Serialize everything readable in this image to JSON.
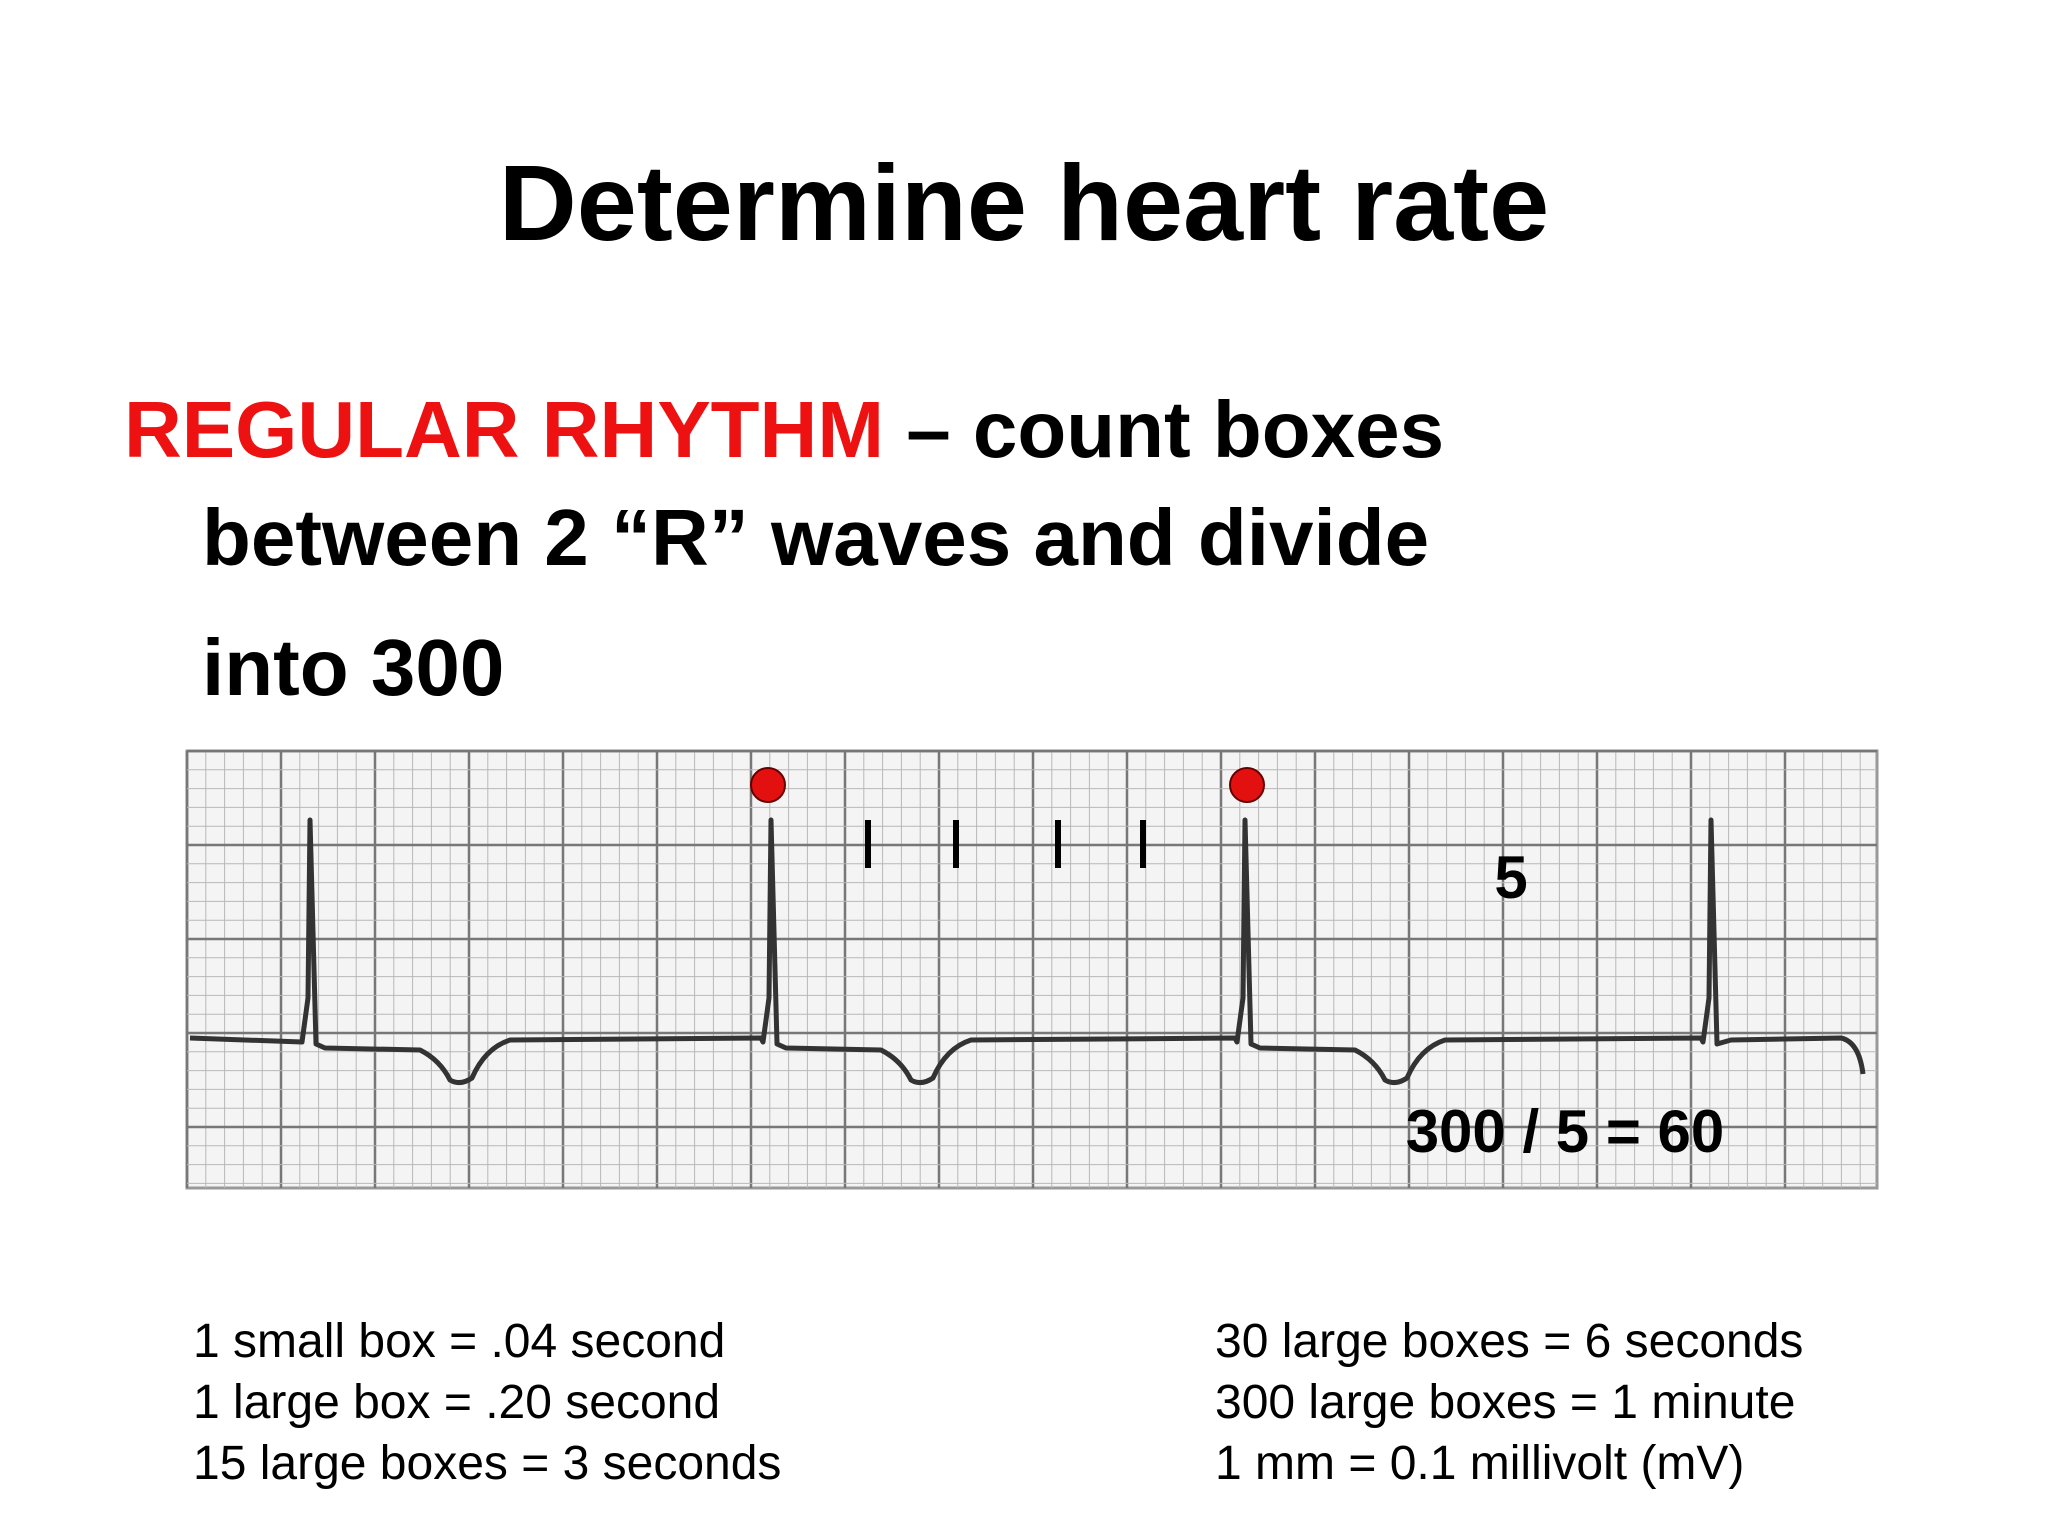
{
  "title": "Determine heart rate",
  "bullet": {
    "highlight": "REGULAR RHYTHM",
    "lines": [
      " – count boxes",
      "between 2 “R” waves and divide",
      "into 300"
    ]
  },
  "strip": {
    "count_label": "5",
    "equation": "300 / 5 = 60"
  },
  "notes": {
    "left": [
      "1 small box = .04 second",
      "1 large box = .20 second",
      "15 large boxes = 3 seconds"
    ],
    "right": [
      "30 large boxes = 6 seconds",
      "300 large boxes = 1 minute",
      "1 mm = 0.1 millivolt (mV)"
    ]
  }
}
